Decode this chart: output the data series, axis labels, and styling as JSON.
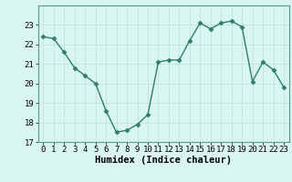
{
  "x": [
    0,
    1,
    2,
    3,
    4,
    5,
    6,
    7,
    8,
    9,
    10,
    11,
    12,
    13,
    14,
    15,
    16,
    17,
    18,
    19,
    20,
    21,
    22,
    23
  ],
  "y": [
    22.4,
    22.3,
    21.6,
    20.8,
    20.4,
    20.0,
    18.6,
    17.5,
    17.6,
    17.9,
    18.4,
    21.1,
    21.2,
    21.2,
    22.2,
    23.1,
    22.8,
    23.1,
    23.2,
    22.9,
    20.1,
    21.1,
    20.7,
    19.8
  ],
  "ylim": [
    17,
    24
  ],
  "yticks": [
    17,
    18,
    19,
    20,
    21,
    22,
    23
  ],
  "xticks": [
    0,
    1,
    2,
    3,
    4,
    5,
    6,
    7,
    8,
    9,
    10,
    11,
    12,
    13,
    14,
    15,
    16,
    17,
    18,
    19,
    20,
    21,
    22,
    23
  ],
  "line_color": "#2e7d6e",
  "marker_color": "#2e7d6e",
  "bg_color": "#d8f5f0",
  "grid_color": "#c0ddd8",
  "xlabel": "Humidex (Indice chaleur)",
  "xlabel_fontsize": 7.5,
  "tick_fontsize": 6.5,
  "line_width": 1.0,
  "marker_size": 2.5
}
